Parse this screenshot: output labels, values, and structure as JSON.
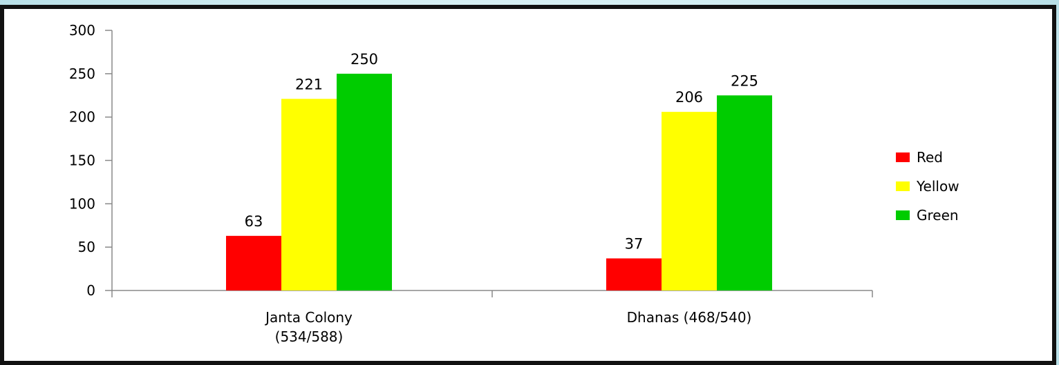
{
  "chart_data": {
    "type": "bar",
    "categories": [
      [
        "Janta Colony",
        "(534/588)"
      ],
      [
        "Dhanas (468/540)"
      ]
    ],
    "series": [
      {
        "name": "Red",
        "color": "#ff0000",
        "values": [
          63,
          37
        ]
      },
      {
        "name": "Yellow",
        "color": "#ffff00",
        "values": [
          221,
          206
        ]
      },
      {
        "name": "Green",
        "color": "#00cc00",
        "values": [
          250,
          225
        ]
      }
    ],
    "ylim": [
      0,
      300
    ],
    "yticks": [
      0,
      50,
      100,
      150,
      200,
      250,
      300
    ],
    "grid": false,
    "legend_position": "right"
  }
}
